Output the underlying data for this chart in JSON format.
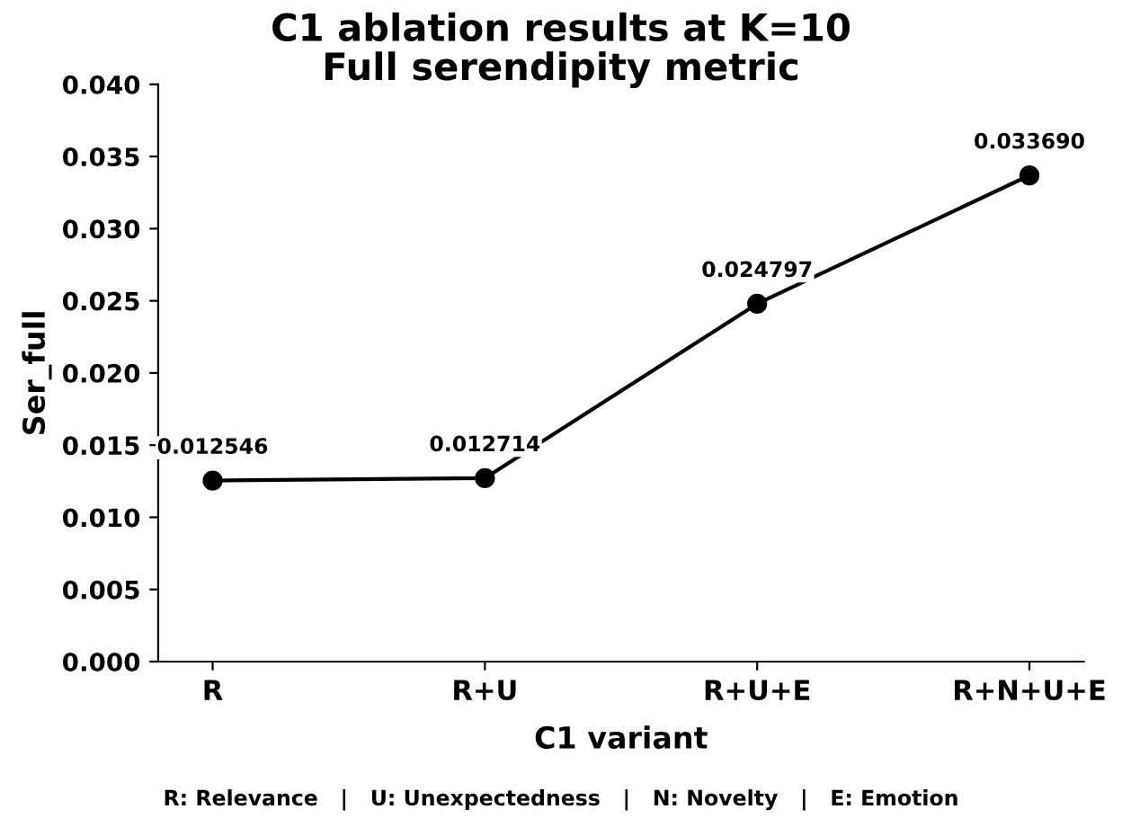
{
  "chart_data": {
    "type": "line",
    "title": "C1 ablation results at K=10\nFull serendipity metric",
    "xlabel": "C1 variant",
    "ylabel": "Ser_full",
    "categories": [
      "R",
      "R+U",
      "R+U+E",
      "R+N+U+E"
    ],
    "values": [
      0.012546,
      0.012714,
      0.024797,
      0.03369
    ],
    "value_labels": [
      "0.012546",
      "0.012714",
      "0.024797",
      "0.033690"
    ],
    "color": "#000000",
    "marker": "circle",
    "line_style": "solid",
    "grid": false,
    "ylim": [
      0,
      0.04
    ],
    "yticks": [
      {
        "value": 0,
        "label": "0.000"
      },
      {
        "value": 0.005,
        "label": "0.005"
      },
      {
        "value": 0.01,
        "label": "0.010"
      },
      {
        "value": 0.015,
        "label": "0.015"
      },
      {
        "value": 0.02,
        "label": "0.020"
      },
      {
        "value": 0.025,
        "label": "0.025"
      },
      {
        "value": 0.03,
        "label": "0.030"
      },
      {
        "value": 0.035,
        "label": "0.035"
      },
      {
        "value": 0.04,
        "label": "0.040"
      }
    ],
    "annotations": [
      "R: Relevance   |   U: Unexpectedness   |   N: Novelty   |   E: Emotion"
    ]
  }
}
